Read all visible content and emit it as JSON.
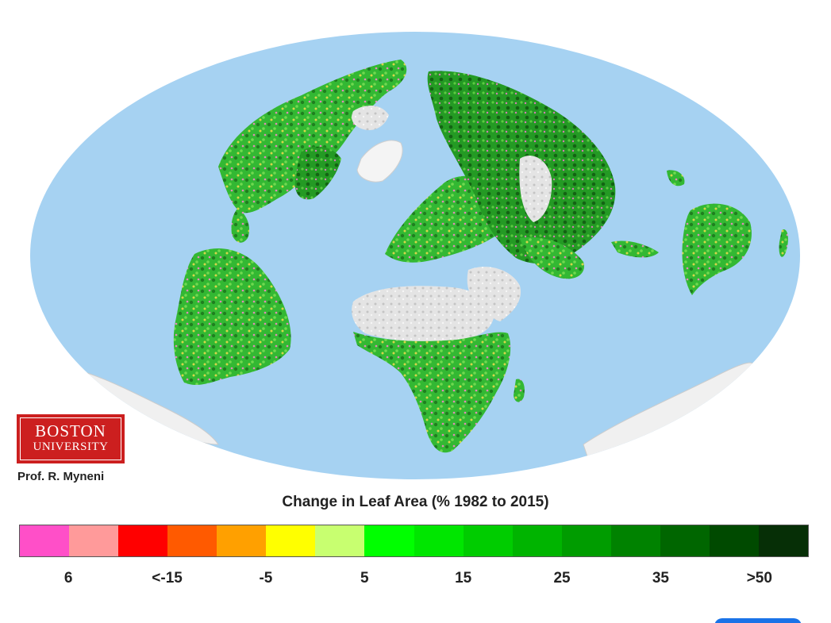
{
  "logo": {
    "line1": "BOSTON",
    "line2": "UNIVERSITY"
  },
  "credit": "Prof. R. Myneni",
  "legend": {
    "title": "Change in Leaf Area (% 1982 to 2015)",
    "colors": [
      "#ff4fc8",
      "#ff9a9a",
      "#ff0000",
      "#ff5a00",
      "#ffa000",
      "#ffff00",
      "#c8ff70",
      "#00ff00",
      "#00e600",
      "#00cc00",
      "#00b400",
      "#009c00",
      "#008200",
      "#006600",
      "#004a00",
      "#062f06"
    ],
    "tick_labels": [
      "6",
      "<-15",
      "-5",
      "5",
      "15",
      "25",
      "35",
      ">50"
    ]
  },
  "map_colors": {
    "ocean": "#a6d2f2",
    "land_green": "#2fb32f",
    "land_dark_green": "#1e7d1e",
    "desert": "#e6e6e6",
    "ice": "#f2f2f2",
    "browning": "#e07ab0",
    "yellow": "#d8d840"
  }
}
